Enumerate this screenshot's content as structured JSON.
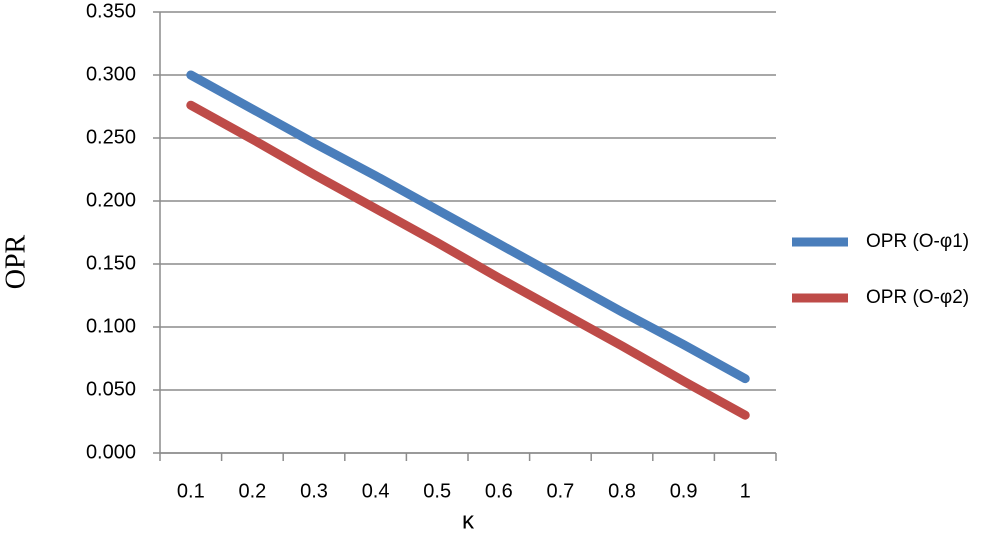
{
  "chart_data": {
    "type": "line",
    "categories": [
      "0.1",
      "0.2",
      "0.3",
      "0.4",
      "0.5",
      "0.6",
      "0.7",
      "0.8",
      "0.9",
      "1"
    ],
    "series": [
      {
        "name": "OPR (O-φ1)",
        "color": "#4a7ebb",
        "values": [
          0.3,
          0.273,
          0.246,
          0.22,
          0.193,
          0.166,
          0.139,
          0.112,
          0.086,
          0.059
        ]
      },
      {
        "name": "OPR (O-φ2)",
        "color": "#be4b48",
        "values": [
          0.276,
          0.249,
          0.221,
          0.194,
          0.167,
          0.139,
          0.112,
          0.085,
          0.057,
          0.03
        ]
      }
    ],
    "xlabel": "κ",
    "ylabel": "OPR",
    "ylim": [
      0,
      0.35
    ],
    "yticks": [
      {
        "value": 0,
        "label": "0.000"
      },
      {
        "value": 0.05,
        "label": "0.050"
      },
      {
        "value": 0.1,
        "label": "0.100"
      },
      {
        "value": 0.15,
        "label": "0.150"
      },
      {
        "value": 0.2,
        "label": "0.200"
      },
      {
        "value": 0.25,
        "label": "0.250"
      },
      {
        "value": 0.3,
        "label": "0.300"
      },
      {
        "value": 0.35,
        "label": "0.350"
      }
    ],
    "grid": true,
    "legend": "right"
  }
}
